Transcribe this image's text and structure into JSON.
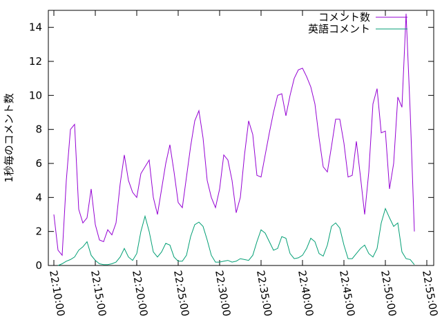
{
  "chart_data": {
    "type": "line",
    "ylabel": "1秒毎のコメント数",
    "x": [
      "22:10:00",
      "22:10:30",
      "22:11:00",
      "22:11:30",
      "22:12:00",
      "22:12:30",
      "22:13:00",
      "22:13:30",
      "22:14:00",
      "22:14:30",
      "22:15:00",
      "22:15:30",
      "22:16:00",
      "22:16:30",
      "22:17:00",
      "22:17:30",
      "22:18:00",
      "22:18:30",
      "22:19:00",
      "22:19:30",
      "22:20:00",
      "22:20:30",
      "22:21:00",
      "22:21:30",
      "22:22:00",
      "22:22:30",
      "22:23:00",
      "22:23:30",
      "22:24:00",
      "22:24:30",
      "22:25:00",
      "22:25:30",
      "22:26:00",
      "22:26:30",
      "22:27:00",
      "22:27:30",
      "22:28:00",
      "22:28:30",
      "22:29:00",
      "22:29:30",
      "22:30:00",
      "22:30:30",
      "22:31:00",
      "22:31:30",
      "22:32:00",
      "22:32:30",
      "22:33:00",
      "22:33:30",
      "22:34:00",
      "22:34:30",
      "22:35:00",
      "22:35:30",
      "22:36:00",
      "22:36:30",
      "22:37:00",
      "22:37:30",
      "22:38:00",
      "22:38:30",
      "22:39:00",
      "22:39:30",
      "22:40:00",
      "22:40:30",
      "22:41:00",
      "22:41:30",
      "22:42:00",
      "22:42:30",
      "22:43:00",
      "22:43:30",
      "22:44:00",
      "22:44:30",
      "22:45:00",
      "22:45:30",
      "22:46:00",
      "22:46:30",
      "22:47:00",
      "22:47:30",
      "22:48:00",
      "22:48:30",
      "22:49:00",
      "22:49:30",
      "22:50:00",
      "22:50:30",
      "22:51:00",
      "22:51:30",
      "22:52:00",
      "22:52:30",
      "22:53:00",
      "22:53:30"
    ],
    "series": [
      {
        "name": "コメント数",
        "color": "#9400d3",
        "values": [
          3.0,
          0.9,
          0.6,
          5.0,
          8.0,
          8.3,
          3.3,
          2.5,
          2.8,
          4.5,
          2.4,
          1.5,
          1.4,
          2.1,
          1.8,
          2.5,
          4.8,
          6.5,
          5.0,
          4.3,
          4.0,
          5.4,
          5.8,
          6.2,
          4.0,
          3.0,
          4.5,
          6.0,
          7.1,
          5.5,
          3.7,
          3.4,
          5.2,
          7.0,
          8.5,
          9.1,
          7.5,
          5.0,
          4.0,
          3.4,
          4.5,
          6.5,
          6.2,
          5.0,
          3.1,
          4.0,
          6.5,
          8.5,
          7.7,
          5.3,
          5.2,
          6.5,
          7.8,
          9.0,
          10.0,
          10.1,
          8.8,
          10.0,
          11.0,
          11.5,
          11.6,
          11.1,
          10.5,
          9.5,
          7.5,
          5.8,
          5.5,
          7.0,
          8.6,
          8.6,
          7.2,
          5.2,
          5.3,
          7.3,
          5.2,
          3.0,
          5.5,
          9.5,
          10.4,
          7.8,
          7.9,
          4.5,
          6.0,
          9.9,
          9.3,
          14.8,
          9.0,
          2.0
        ]
      },
      {
        "name": "英語コメント",
        "color": "#009e73",
        "values": [
          null,
          0.0,
          0.1,
          0.25,
          0.35,
          0.5,
          0.9,
          1.1,
          1.4,
          0.6,
          0.3,
          0.1,
          0.05,
          0.05,
          0.1,
          0.2,
          0.5,
          1.0,
          0.5,
          0.3,
          0.7,
          2.0,
          2.9,
          2.0,
          0.8,
          0.5,
          0.8,
          1.3,
          1.2,
          0.5,
          0.25,
          0.25,
          0.6,
          1.7,
          2.4,
          2.55,
          2.3,
          1.5,
          0.6,
          0.2,
          0.2,
          0.25,
          0.3,
          0.2,
          0.25,
          0.4,
          0.35,
          0.3,
          0.6,
          1.4,
          2.1,
          1.9,
          1.4,
          0.9,
          1.0,
          1.7,
          1.6,
          0.7,
          0.4,
          0.45,
          0.6,
          1.0,
          1.6,
          1.4,
          0.7,
          0.55,
          1.2,
          2.3,
          2.5,
          2.2,
          1.2,
          0.4,
          0.4,
          0.7,
          1.0,
          1.2,
          0.7,
          0.5,
          1.0,
          2.5,
          3.35,
          2.8,
          2.3,
          2.5,
          0.8,
          0.4,
          0.35,
          0.05
        ]
      }
    ],
    "xlim": [
      "22:09:20",
      "22:55:50"
    ],
    "xticks": [
      "22:10:00",
      "22:15:00",
      "22:20:00",
      "22:25:00",
      "22:30:00",
      "22:35:00",
      "22:40:00",
      "22:45:00",
      "22:50:00",
      "22:55:00"
    ],
    "ylim": [
      0,
      15
    ],
    "yticks": [
      0,
      2,
      4,
      6,
      8,
      10,
      12,
      14
    ],
    "legend": "top-right"
  }
}
